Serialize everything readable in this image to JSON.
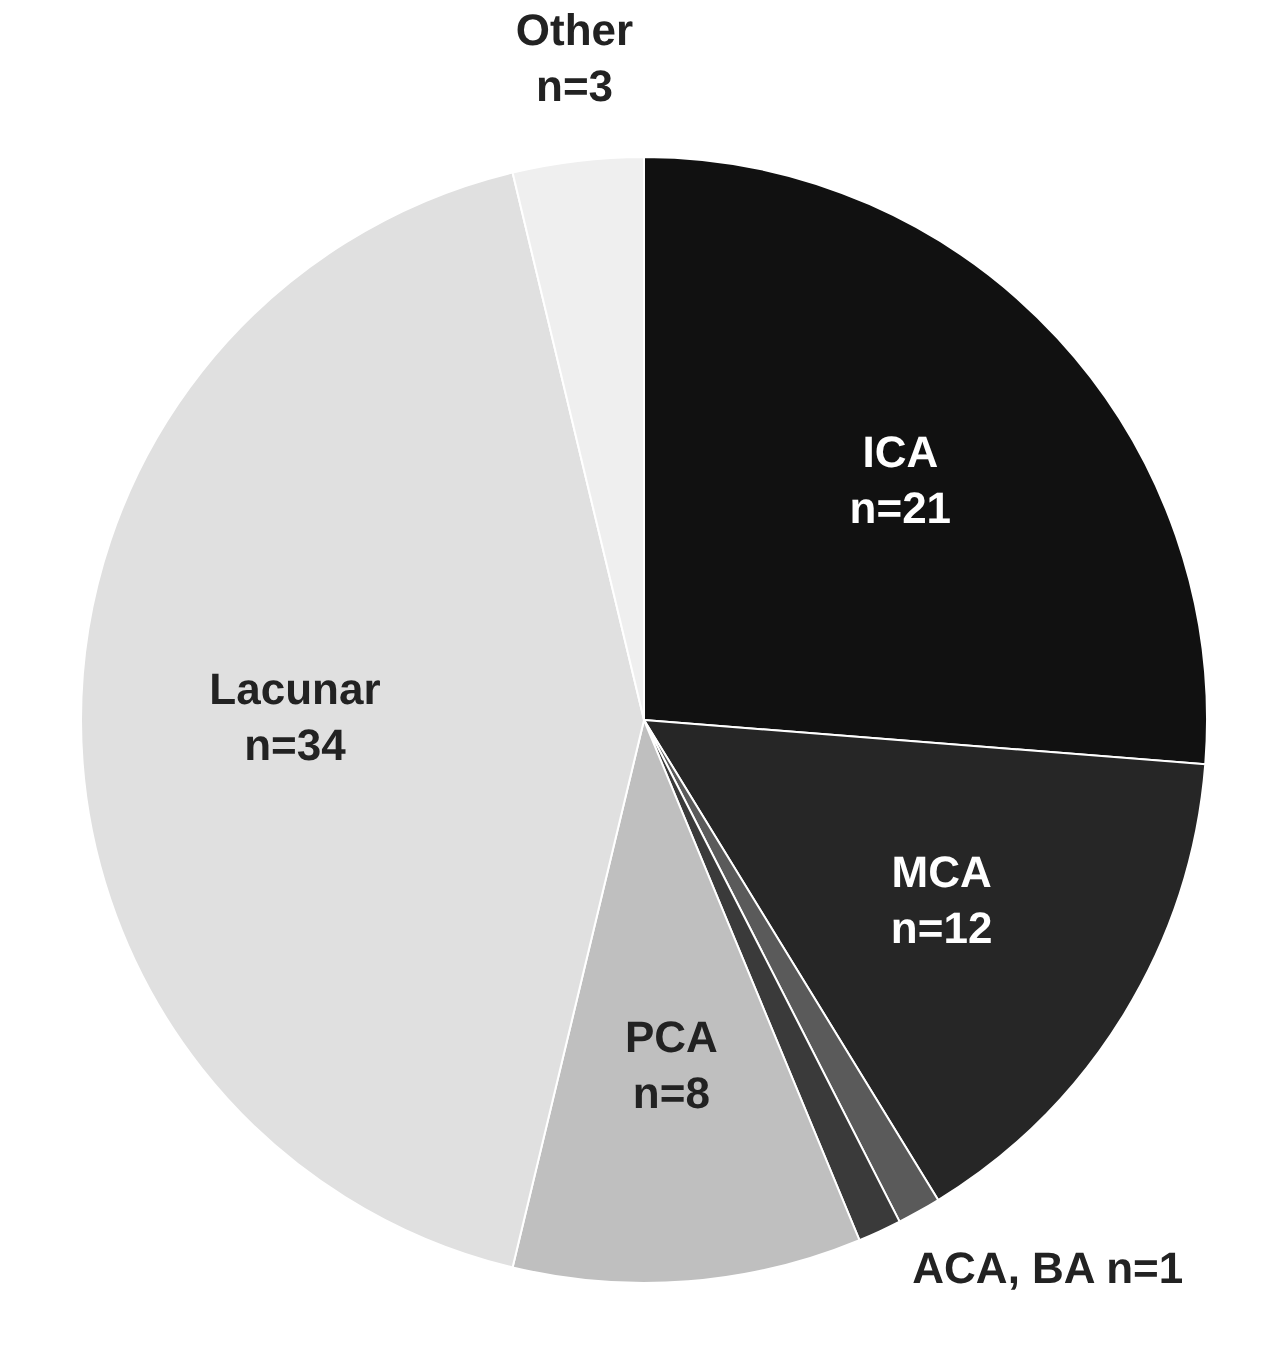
{
  "chart_data": {
    "type": "pie",
    "categories": [
      "ICA",
      "MCA",
      "ACA, BA",
      null,
      "PCA",
      "Lacunar",
      "Other"
    ],
    "values": [
      21,
      12,
      1,
      1,
      8,
      34,
      3
    ],
    "colors": [
      "#111111",
      "#262626",
      "#5a5a5a",
      "#3a3a3a",
      "#bfbfbf",
      "#e0e0e0",
      "#efefef"
    ],
    "value_labels": [
      "n=21",
      "n=12",
      "n=1",
      null,
      "n=8",
      "n=34",
      "n=3"
    ],
    "legend": false
  }
}
